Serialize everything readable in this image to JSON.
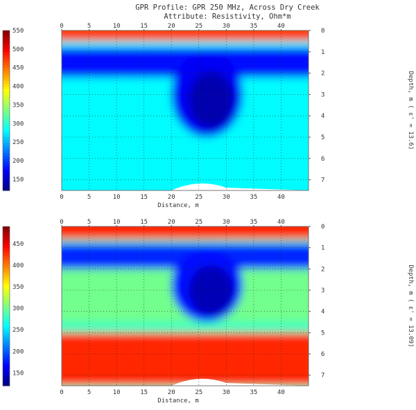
{
  "title": "GPR Profile: GPR 250 MHz, Across Dry Creek",
  "subtitle": "Attribute:  Resistivity, Ohm*m",
  "chart_data": [
    {
      "type": "heatmap",
      "xlabel": "Distance, m",
      "ylabel": "Depth, m ( ε' = 13.6)",
      "xlim": [
        0,
        45
      ],
      "ylim": [
        0,
        7.5
      ],
      "x_ticks": [
        0,
        5,
        10,
        15,
        20,
        25,
        30,
        35,
        40
      ],
      "y_ticks": [
        0,
        1,
        2,
        3,
        4,
        5,
        6,
        7
      ],
      "colorbar": {
        "min": 120,
        "max": 550,
        "ticks": [
          150,
          200,
          250,
          300,
          350,
          400,
          450,
          500,
          550
        ]
      },
      "colormap": "jet",
      "grid": true,
      "layers": [
        {
          "depth": [
            0,
            0.5
          ],
          "resistivity": 470
        },
        {
          "depth": [
            0.8,
            2.2
          ],
          "resistivity": 180
        },
        {
          "depth": [
            2.2,
            7.5
          ],
          "resistivity": 280
        }
      ],
      "anomaly": {
        "x_range": [
          20,
          33
        ],
        "depth_range": [
          1.0,
          5.0
        ],
        "resistivity": 140
      }
    },
    {
      "type": "heatmap",
      "xlabel": "Distance, m",
      "ylabel": "Depth, m ( ε' = 13.09)",
      "xlim": [
        0,
        45
      ],
      "ylim": [
        0,
        7.5
      ],
      "x_ticks": [
        0,
        5,
        10,
        15,
        20,
        25,
        30,
        35,
        40
      ],
      "y_ticks": [
        0,
        1,
        2,
        3,
        4,
        5,
        6,
        7
      ],
      "colorbar": {
        "min": 120,
        "max": 490,
        "ticks": [
          150,
          200,
          250,
          300,
          350,
          400,
          450
        ]
      },
      "colormap": "jet",
      "grid": true,
      "layers": [
        {
          "depth": [
            0,
            0.6
          ],
          "resistivity": 430
        },
        {
          "depth": [
            0.8,
            2.0
          ],
          "resistivity": 180
        },
        {
          "depth": [
            2.0,
            4.5
          ],
          "resistivity": 300
        },
        {
          "depth": [
            5.0,
            7.5
          ],
          "resistivity": 430
        }
      ],
      "anomaly": {
        "x_range": [
          20,
          33
        ],
        "depth_range": [
          1.0,
          4.5
        ],
        "resistivity": 140
      }
    }
  ]
}
